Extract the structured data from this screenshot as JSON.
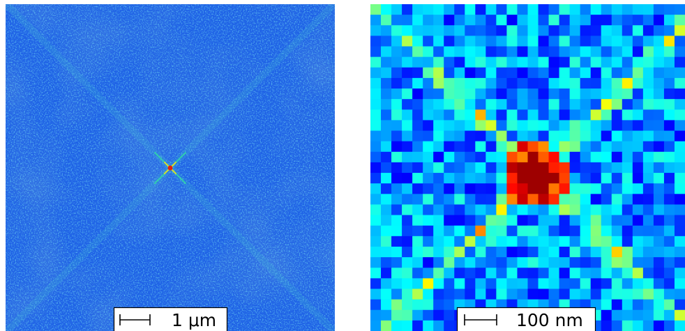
{
  "left_panel": {
    "scale_bar": "1 μm"
  },
  "right_panel": {
    "scale_bar": "100 nm"
  }
}
